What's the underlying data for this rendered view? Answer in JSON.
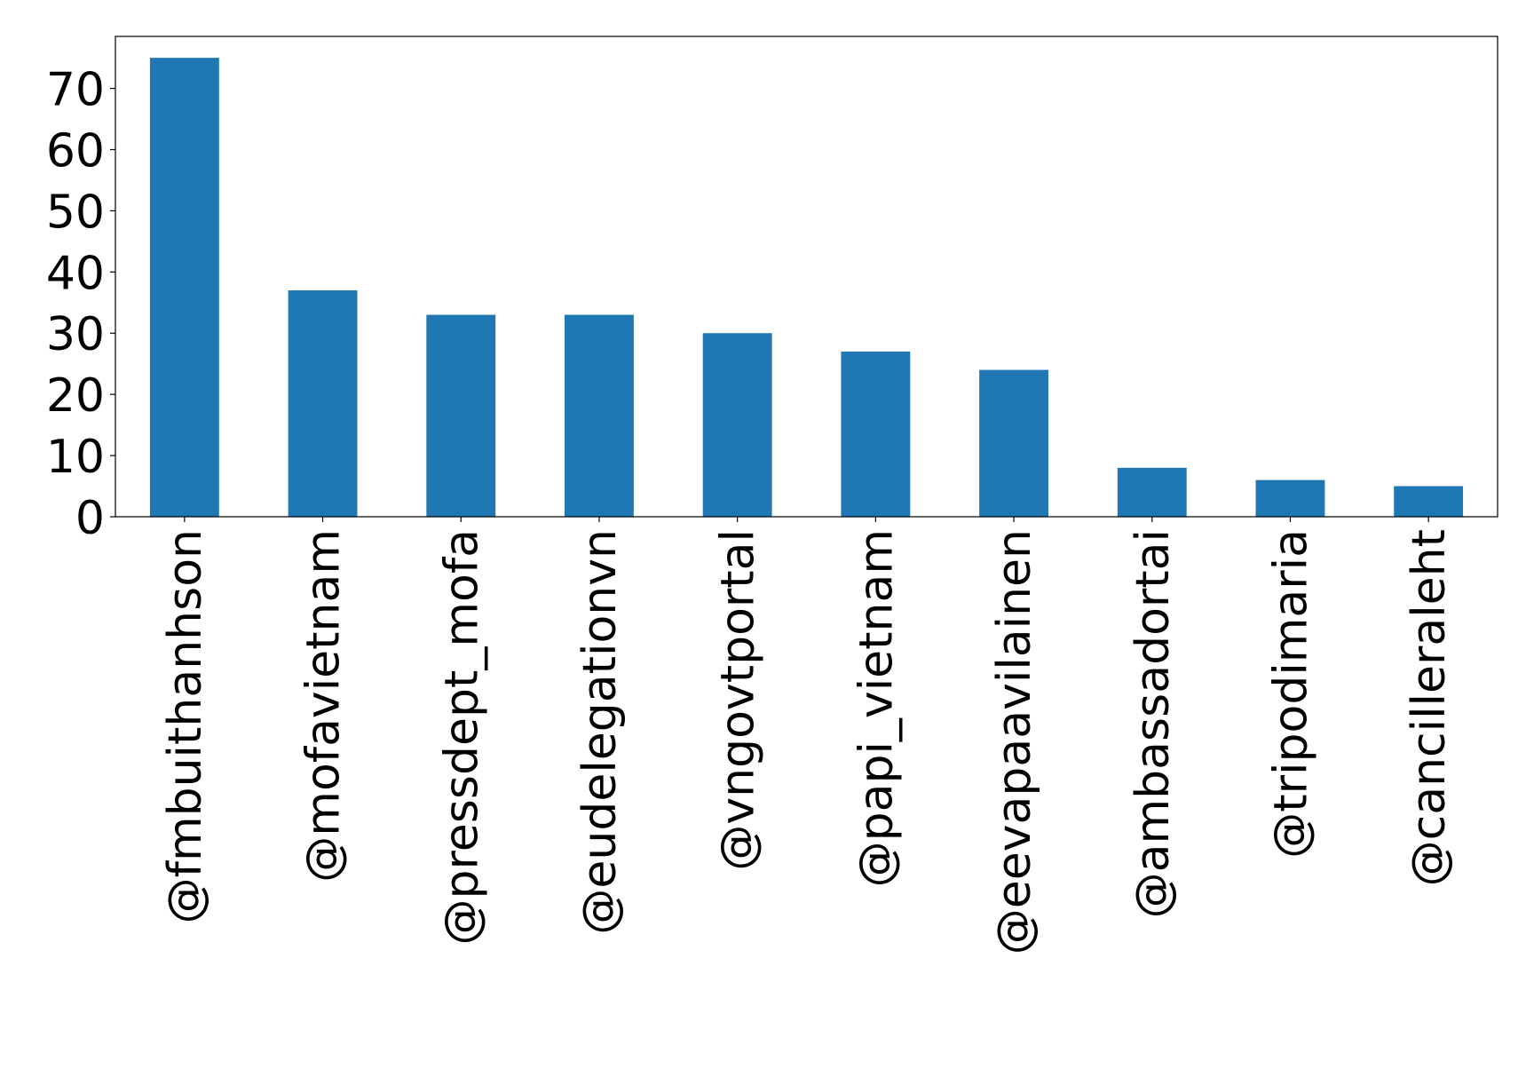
{
  "chart_data": {
    "type": "bar",
    "categories": [
      "@fmbuithanhson",
      "@mofavietnam",
      "@pressdept_mofa",
      "@eudelegationvn",
      "@vngovtportal",
      "@papi_vietnam",
      "@eevapaavilainen",
      "@ambassadortai",
      "@tripodimaria",
      "@cancilleraleht"
    ],
    "values": [
      75,
      37,
      33,
      33,
      30,
      27,
      24,
      8,
      6,
      5
    ],
    "color": "#1f77b4",
    "ylim": [
      0,
      78.5
    ],
    "yticks": [
      0,
      10,
      20,
      30,
      40,
      50,
      60,
      70
    ],
    "grid": false
  }
}
